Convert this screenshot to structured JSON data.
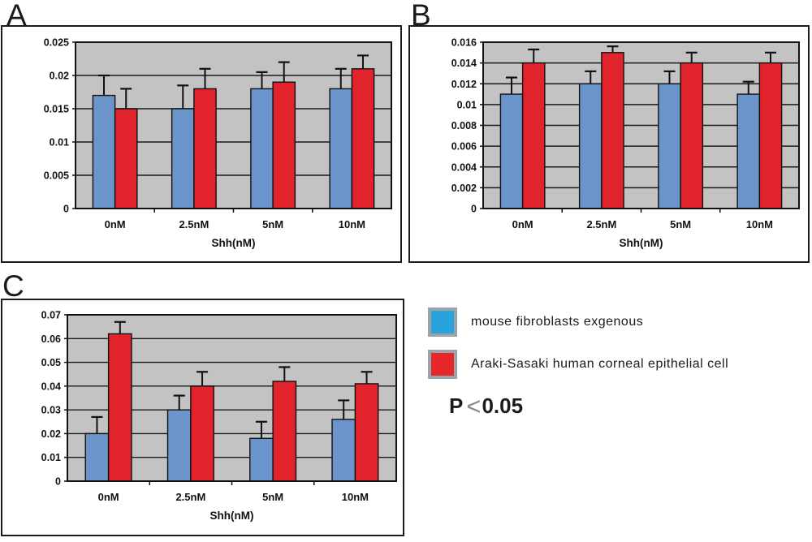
{
  "figure": {
    "panels": [
      {
        "letter": "A"
      },
      {
        "letter": "B"
      },
      {
        "letter": "C"
      }
    ],
    "legend": {
      "items": [
        {
          "label": "mouse fibroblasts exgenous",
          "color": "#29a3dc"
        },
        {
          "label": "Araki-Sasaki human corneal epithelial cell",
          "color": "#e8272b"
        }
      ],
      "swatch_border": "#9aa4ab",
      "stat_note": {
        "prefix": "P",
        "symbol": "<",
        "value": "0.05"
      }
    }
  },
  "chart_data": [
    {
      "type": "bar",
      "panel": "A",
      "categories": [
        "0nM",
        "2.5nM",
        "5nM",
        "10nM"
      ],
      "xlabel": "Shh(nM)",
      "ylim": [
        0,
        0.025
      ],
      "ytick_step": 0.005,
      "ytick_labels": [
        "0",
        "0.005",
        "0.01",
        "0.015",
        "0.02",
        "0.025"
      ],
      "grid": true,
      "plot_bg": "#c3c3c3",
      "series": [
        {
          "name": "mouse fibroblasts exgenous",
          "color": "#6b95ca",
          "values": [
            0.017,
            0.015,
            0.018,
            0.018
          ],
          "errors": [
            0.003,
            0.0035,
            0.0025,
            0.003
          ]
        },
        {
          "name": "Araki-Sasaki human corneal epithelial cell",
          "color": "#e1232b",
          "values": [
            0.015,
            0.018,
            0.019,
            0.021
          ],
          "errors": [
            0.003,
            0.003,
            0.003,
            0.002
          ]
        }
      ]
    },
    {
      "type": "bar",
      "panel": "B",
      "categories": [
        "0nM",
        "2.5nM",
        "5nM",
        "10nM"
      ],
      "xlabel": "Shh(nM)",
      "ylim": [
        0,
        0.016
      ],
      "ytick_step": 0.002,
      "ytick_labels": [
        "0",
        "0.002",
        "0.004",
        "0.006",
        "0.008",
        "0.01",
        "0.012",
        "0.014",
        "0.016"
      ],
      "grid": true,
      "plot_bg": "#c3c3c3",
      "series": [
        {
          "name": "mouse fibroblasts exgenous",
          "color": "#6b95ca",
          "values": [
            0.011,
            0.012,
            0.012,
            0.011
          ],
          "errors": [
            0.0016,
            0.0012,
            0.0012,
            0.0012
          ]
        },
        {
          "name": "Araki-Sasaki human corneal epithelial cell",
          "color": "#e1232b",
          "values": [
            0.014,
            0.015,
            0.014,
            0.014
          ],
          "errors": [
            0.0013,
            0.0006,
            0.001,
            0.001
          ]
        }
      ]
    },
    {
      "type": "bar",
      "panel": "C",
      "categories": [
        "0nM",
        "2.5nM",
        "5nM",
        "10nM"
      ],
      "xlabel": "Shh(nM)",
      "ylim": [
        0,
        0.07
      ],
      "ytick_step": 0.01,
      "ytick_labels": [
        "0",
        "0.01",
        "0.02",
        "0.03",
        "0.04",
        "0.05",
        "0.06",
        "0.07"
      ],
      "grid": true,
      "plot_bg": "#c3c3c3",
      "series": [
        {
          "name": "mouse fibroblasts exgenous",
          "color": "#6b95ca",
          "values": [
            0.02,
            0.03,
            0.018,
            0.026
          ],
          "errors": [
            0.007,
            0.006,
            0.007,
            0.008
          ]
        },
        {
          "name": "Araki-Sasaki human corneal epithelial cell",
          "color": "#e1232b",
          "values": [
            0.062,
            0.04,
            0.042,
            0.041
          ],
          "errors": [
            0.005,
            0.006,
            0.006,
            0.005
          ]
        }
      ]
    }
  ]
}
